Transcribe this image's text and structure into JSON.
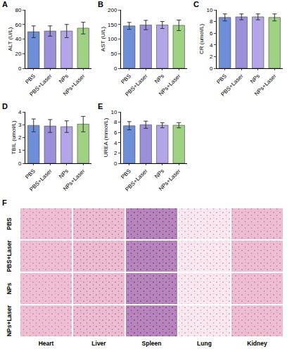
{
  "chart_data": [
    {
      "type": "bar",
      "panel": "A",
      "y_label": "ALT (U/L)",
      "categories": [
        "PBS",
        "PBS+Laser",
        "NPs",
        "NPs+Laser"
      ],
      "values": [
        50,
        51,
        51,
        55
      ],
      "errors": [
        8,
        7,
        9,
        8
      ],
      "colors": [
        "#6e8fd8",
        "#9a8fd8",
        "#b3a6e6",
        "#9fd183"
      ],
      "ylim": [
        0,
        80
      ],
      "yticks": [
        0,
        20,
        40,
        60,
        80
      ],
      "grid": false
    },
    {
      "type": "bar",
      "panel": "B",
      "y_label": "AST (U/L)",
      "categories": [
        "PBS",
        "PBS+Laser",
        "NPs",
        "NPs+Laser"
      ],
      "values": [
        145,
        148,
        148,
        147
      ],
      "errors": [
        12,
        16,
        12,
        18
      ],
      "colors": [
        "#6e8fd8",
        "#9a8fd8",
        "#b3a6e6",
        "#9fd183"
      ],
      "ylim": [
        0,
        200
      ],
      "yticks": [
        0,
        50,
        100,
        150,
        200
      ],
      "grid": false
    },
    {
      "type": "bar",
      "panel": "C",
      "y_label": "CR (umol/L)",
      "categories": [
        "PBS",
        "PBS+Laser",
        "NPs",
        "NPs+Laser"
      ],
      "values": [
        8.7,
        8.8,
        8.8,
        8.7
      ],
      "errors": [
        0.6,
        0.5,
        0.5,
        0.6
      ],
      "colors": [
        "#6e8fd8",
        "#9a8fd8",
        "#b3a6e6",
        "#9fd183"
      ],
      "ylim": [
        0,
        10
      ],
      "yticks": [
        0,
        2,
        4,
        6,
        8,
        10
      ],
      "grid": false
    },
    {
      "type": "bar",
      "panel": "D",
      "y_label": "TBIL (umol/L)",
      "categories": [
        "PBS",
        "PBS+Laser",
        "NPs",
        "NPs+Laser"
      ],
      "values": [
        2.95,
        2.9,
        2.85,
        3.05
      ],
      "errors": [
        0.5,
        0.5,
        0.45,
        0.6
      ],
      "colors": [
        "#6e8fd8",
        "#9a8fd8",
        "#b3a6e6",
        "#9fd183"
      ],
      "ylim": [
        0,
        4
      ],
      "yticks": [
        0,
        1,
        2,
        3,
        4
      ],
      "grid": false
    },
    {
      "type": "bar",
      "panel": "E",
      "y_label": "UREA (mmol/L)",
      "categories": [
        "PBS",
        "PBS+Laser",
        "NPs",
        "NPs+Laser"
      ],
      "values": [
        7.3,
        7.5,
        7.4,
        7.4
      ],
      "errors": [
        0.8,
        0.7,
        0.5,
        0.5
      ],
      "colors": [
        "#6e8fd8",
        "#9a8fd8",
        "#b3a6e6",
        "#9fd183"
      ],
      "ylim": [
        0,
        10
      ],
      "yticks": [
        0,
        2,
        4,
        6,
        8,
        10
      ],
      "grid": false
    }
  ],
  "histology": {
    "panel": "F",
    "rows": [
      "PBS",
      "PBS+Laser",
      "NPs",
      "NPs+Laser"
    ],
    "columns": [
      "Heart",
      "Liver",
      "Spleen",
      "Lung",
      "Kidney"
    ]
  }
}
